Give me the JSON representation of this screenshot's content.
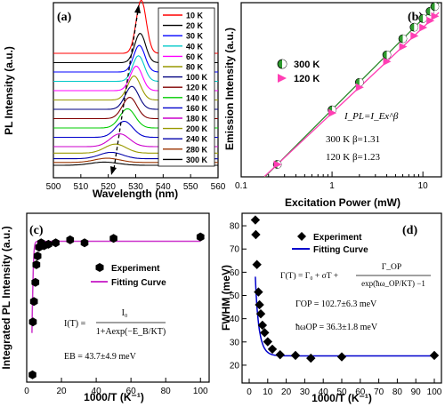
{
  "chart_data": [
    {
      "panel": "(a)",
      "type": "line",
      "xlabel": "Wavelength (nm)",
      "ylabel": "PL Intensity (a.u.)",
      "xlim": [
        500,
        560
      ],
      "xticks": [
        "500",
        "510",
        "520",
        "530",
        "540",
        "550",
        "560"
      ],
      "grid": false,
      "legend_position": "top-right",
      "note": "peak position shift (dashed arrow)",
      "series": [
        {
          "name": "10 K",
          "color": "#ff0000",
          "peak_nm": 532.0,
          "offset": 12,
          "amp": 1.0,
          "width": 2.6
        },
        {
          "name": "20 K",
          "color": "#000000",
          "peak_nm": 531.6,
          "offset": 11,
          "amp": 0.55,
          "width": 2.8
        },
        {
          "name": "30 K",
          "color": "#0000ff",
          "peak_nm": 531.3,
          "offset": 10,
          "amp": 0.5,
          "width": 2.9
        },
        {
          "name": "40 K",
          "color": "#00c8c8",
          "peak_nm": 531.0,
          "offset": 9,
          "amp": 0.48,
          "width": 3.0
        },
        {
          "name": "60 K",
          "color": "#ff00ff",
          "peak_nm": 530.2,
          "offset": 8,
          "amp": 0.46,
          "width": 3.1
        },
        {
          "name": "80 K",
          "color": "#999900",
          "peak_nm": 529.4,
          "offset": 7,
          "amp": 0.45,
          "width": 3.3
        },
        {
          "name": "100 K",
          "color": "#000080",
          "peak_nm": 528.6,
          "offset": 6,
          "amp": 0.43,
          "width": 3.5
        },
        {
          "name": "120 K",
          "color": "#800000",
          "peak_nm": 527.8,
          "offset": 5,
          "amp": 0.4,
          "width": 3.7
        },
        {
          "name": "140 K",
          "color": "#00cc00",
          "peak_nm": 527.0,
          "offset": 4,
          "amp": 0.36,
          "width": 4.0
        },
        {
          "name": "160 K",
          "color": "#0000cc",
          "peak_nm": 525.8,
          "offset": 3,
          "amp": 0.3,
          "width": 4.4
        },
        {
          "name": "180 K",
          "color": "#cc00cc",
          "peak_nm": 524.2,
          "offset": 2,
          "amp": 0.24,
          "width": 5.0
        },
        {
          "name": "200 K",
          "color": "#999900",
          "peak_nm": 522.6,
          "offset": 1.3,
          "amp": 0.17,
          "width": 5.5
        },
        {
          "name": "240 K",
          "color": "#0000aa",
          "peak_nm": 521.0,
          "offset": 0.7,
          "amp": 0.12,
          "width": 6.0
        },
        {
          "name": "280 K",
          "color": "#993300",
          "peak_nm": 519.6,
          "offset": 0.3,
          "amp": 0.08,
          "width": 6.5
        },
        {
          "name": "300 K",
          "color": "#000000",
          "peak_nm": 518.6,
          "offset": 0,
          "amp": 0.06,
          "width": 7.0
        }
      ]
    },
    {
      "panel": "(b)",
      "type": "scatter",
      "xlabel": "Excitation Power (mW)",
      "ylabel": "Emission Intensity (a.u.)",
      "xscale": "log",
      "yscale": "log",
      "xlim": [
        0.1,
        16
      ],
      "xticks": [
        "0.1",
        "1",
        "10"
      ],
      "grid": false,
      "legend_position": "top-left",
      "annotation_lines": [
        "I_PL=I_Ex^β",
        "300 K   β=1.31",
        "120 K   β=1.23"
      ],
      "series": [
        {
          "name": "300 K",
          "color": "#2e9b2e",
          "beta": 1.31,
          "x": [
            0.25,
            1.0,
            2.0,
            4.0,
            6.0,
            8.0,
            10.0,
            12.0,
            13.5
          ],
          "y": [
            1,
            6.1,
            15.2,
            37.9,
            64.7,
            94.6,
            126.5,
            160.7,
            188.2
          ]
        },
        {
          "name": "120 K",
          "color": "#ff3fb4",
          "beta": 1.23,
          "x": [
            0.25,
            1.0,
            2.0,
            4.0,
            6.0,
            8.0,
            10.0,
            12.0,
            13.5
          ],
          "y": [
            1,
            5.5,
            12.9,
            30.3,
            49.6,
            71.1,
            93.6,
            117.5,
            136.3
          ]
        }
      ]
    },
    {
      "panel": "(c)",
      "type": "scatter",
      "xlabel": "1000/T (K⁻¹)",
      "ylabel": "Integrated PL Intensity (a.u.)",
      "xlim": [
        0,
        105
      ],
      "xticks": [
        "0",
        "20",
        "40",
        "60",
        "80",
        "100"
      ],
      "grid": false,
      "legend_position": "center-right",
      "legend": [
        "Experiment",
        "Fitting Curve"
      ],
      "formula": "I(T) = I0 / (1+Aexp(−EB/KT))",
      "annotation": "EB = 43.7±4.9 meV",
      "Eb_meV": 43.7,
      "x": [
        3.33,
        3.57,
        4.17,
        5.0,
        5.56,
        6.25,
        7.14,
        8.33,
        10,
        12.5,
        16.7,
        25,
        33.3,
        50,
        100
      ],
      "y": [
        0.02,
        0.38,
        0.52,
        0.65,
        0.77,
        0.83,
        0.89,
        0.92,
        0.9,
        0.91,
        0.92,
        0.94,
        0.92,
        0.95,
        0.96
      ]
    },
    {
      "panel": "(d)",
      "type": "scatter",
      "xlabel": "1000/T (K⁻¹)",
      "ylabel": "FWHM (meV)",
      "xlim": [
        0,
        100
      ],
      "ylim": [
        15,
        85
      ],
      "xticks": [
        "0",
        "10",
        "20",
        "30",
        "40",
        "50",
        "60",
        "70",
        "80",
        "90",
        "100"
      ],
      "yticks": [
        "20",
        "30",
        "40",
        "50",
        "60",
        "70",
        "80"
      ],
      "grid": false,
      "legend_position": "top-right",
      "legend": [
        "Experiment",
        "Fitting Curve"
      ],
      "formula": "Γ(T) = Γ0 + σT + ΓOP / (exp(ħωOP/KT) − 1)",
      "annotation_lines": [
        "ΓOP = 102.7±6.3  meV",
        "ħωOP = 36.3±1.8  meV"
      ],
      "x": [
        3.33,
        3.57,
        4.17,
        5.0,
        5.56,
        6.25,
        7.14,
        8.33,
        10,
        12.5,
        16.7,
        25,
        33.3,
        50,
        100
      ],
      "y": [
        82.5,
        76.2,
        63.3,
        51.5,
        46.0,
        42.1,
        37.2,
        34.0,
        30.1,
        26.9,
        24.5,
        24.2,
        23.0,
        23.6,
        24.2
      ]
    }
  ],
  "panel_labels": [
    "(a)",
    "(b)",
    "(c)",
    "(d)"
  ],
  "legend_c": {
    "exp": "Experiment",
    "fit": "Fitting Curve"
  },
  "legend_d": {
    "exp": "Experiment",
    "fit": "Fitting Curve"
  },
  "legend_b": {
    "s1": "300 K",
    "s2": "120 K"
  },
  "colors": {
    "fit_c": "#cc33cc",
    "fit_d": "#0000cc",
    "fit_b300": "#2e8b2e",
    "fit_b120": "#ff3fb4"
  }
}
